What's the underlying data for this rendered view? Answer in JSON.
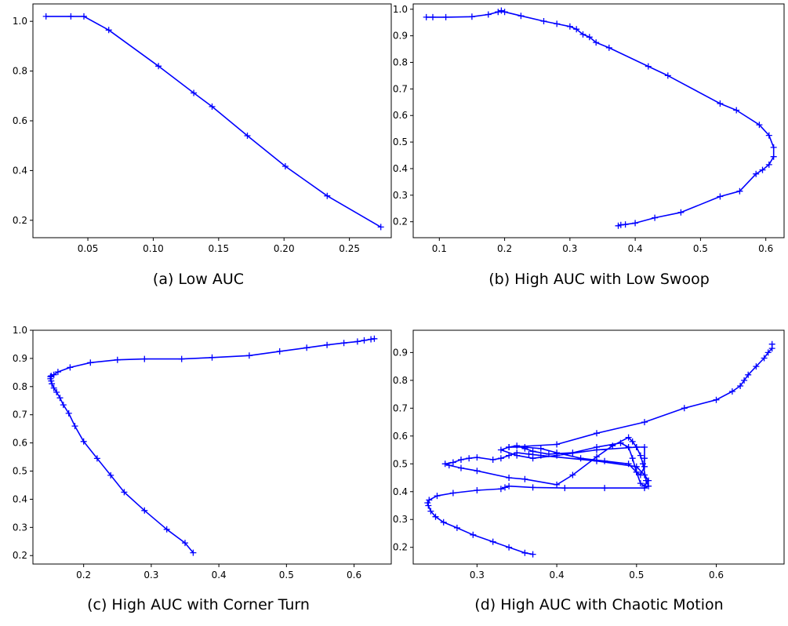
{
  "figure": {
    "line_color": "#0000ff",
    "marker": "plus"
  },
  "chart_data": [
    {
      "type": "line",
      "caption": "(a) Low AUC",
      "xlim": [
        0.008,
        0.282
      ],
      "ylim": [
        0.13,
        1.07
      ],
      "xticks": [
        0.05,
        0.1,
        0.15,
        0.2,
        0.25
      ],
      "xtick_labels": [
        "0.05",
        "0.10",
        "0.15",
        "0.20",
        "0.25"
      ],
      "yticks": [
        0.2,
        0.4,
        0.6,
        0.8,
        1.0
      ],
      "ytick_labels": [
        "0.2",
        "0.4",
        "0.6",
        "0.8",
        "1.0"
      ],
      "series": [
        {
          "x": [
            0.018,
            0.037,
            0.047,
            0.066,
            0.104,
            0.131,
            0.145,
            0.172,
            0.201,
            0.233,
            0.274
          ],
          "y": [
            1.02,
            1.02,
            1.02,
            0.965,
            0.82,
            0.712,
            0.657,
            0.54,
            0.417,
            0.298,
            0.173
          ]
        }
      ]
    },
    {
      "type": "line",
      "caption": "(b) High AUC with Low Swoop",
      "xlim": [
        0.06,
        0.628
      ],
      "ylim": [
        0.14,
        1.02
      ],
      "xticks": [
        0.1,
        0.2,
        0.3,
        0.4,
        0.5,
        0.6
      ],
      "xtick_labels": [
        "0.1",
        "0.2",
        "0.3",
        "0.4",
        "0.5",
        "0.6"
      ],
      "yticks": [
        0.2,
        0.3,
        0.4,
        0.5,
        0.6,
        0.7,
        0.8,
        0.9,
        1.0
      ],
      "ytick_labels": [
        "0.2",
        "0.3",
        "0.4",
        "0.5",
        "0.6",
        "0.7",
        "0.8",
        "0.9",
        "1.0"
      ],
      "series": [
        {
          "x": [
            0.08,
            0.09,
            0.11,
            0.15,
            0.175,
            0.19,
            0.195,
            0.2,
            0.225,
            0.26,
            0.28,
            0.3,
            0.31,
            0.32,
            0.33,
            0.34,
            0.36,
            0.42,
            0.45,
            0.53,
            0.555,
            0.59,
            0.605,
            0.612,
            0.612,
            0.605,
            0.595,
            0.585,
            0.56,
            0.53,
            0.47,
            0.43,
            0.4,
            0.385,
            0.378,
            0.374
          ],
          "y": [
            0.97,
            0.97,
            0.97,
            0.972,
            0.98,
            0.99,
            0.995,
            0.99,
            0.975,
            0.955,
            0.945,
            0.935,
            0.925,
            0.905,
            0.895,
            0.875,
            0.855,
            0.785,
            0.75,
            0.645,
            0.62,
            0.565,
            0.525,
            0.48,
            0.445,
            0.415,
            0.395,
            0.38,
            0.315,
            0.295,
            0.235,
            0.215,
            0.195,
            0.19,
            0.188,
            0.185
          ]
        }
      ]
    },
    {
      "type": "line",
      "caption": "(c) High AUC with Corner Turn",
      "xlim": [
        0.125,
        0.655
      ],
      "ylim": [
        0.17,
        1.0
      ],
      "xticks": [
        0.2,
        0.3,
        0.4,
        0.5,
        0.6
      ],
      "xtick_labels": [
        "0.2",
        "0.3",
        "0.4",
        "0.5",
        "0.6"
      ],
      "yticks": [
        0.2,
        0.3,
        0.4,
        0.5,
        0.6,
        0.7,
        0.8,
        0.9,
        1.0
      ],
      "ytick_labels": [
        "0.2",
        "0.3",
        "0.4",
        "0.5",
        "0.6",
        "0.7",
        "0.8",
        "0.9",
        "1.0"
      ],
      "series": [
        {
          "x": [
            0.362,
            0.35,
            0.323,
            0.29,
            0.26,
            0.24,
            0.22,
            0.2,
            0.187,
            0.178,
            0.17,
            0.165,
            0.16,
            0.156,
            0.153,
            0.152,
            0.151,
            0.151,
            0.152,
            0.156,
            0.162,
            0.18,
            0.21,
            0.25,
            0.29,
            0.345,
            0.39,
            0.445,
            0.49,
            0.53,
            0.56,
            0.585,
            0.605,
            0.615,
            0.625,
            0.63
          ],
          "y": [
            0.21,
            0.245,
            0.293,
            0.36,
            0.425,
            0.485,
            0.545,
            0.605,
            0.66,
            0.705,
            0.735,
            0.76,
            0.78,
            0.795,
            0.81,
            0.82,
            0.828,
            0.835,
            0.838,
            0.842,
            0.852,
            0.868,
            0.885,
            0.895,
            0.898,
            0.898,
            0.903,
            0.91,
            0.925,
            0.938,
            0.948,
            0.955,
            0.96,
            0.964,
            0.968,
            0.97
          ]
        }
      ]
    },
    {
      "type": "line",
      "caption": "(d) High AUC with Chaotic Motion",
      "xlim": [
        0.22,
        0.685
      ],
      "ylim": [
        0.14,
        0.98
      ],
      "xticks": [
        0.3,
        0.4,
        0.5,
        0.6
      ],
      "xtick_labels": [
        "0.3",
        "0.4",
        "0.5",
        "0.6"
      ],
      "yticks": [
        0.2,
        0.3,
        0.4,
        0.5,
        0.6,
        0.7,
        0.8,
        0.9
      ],
      "ytick_labels": [
        "0.2",
        "0.3",
        "0.4",
        "0.5",
        "0.6",
        "0.7",
        "0.8",
        "0.9"
      ],
      "series": [
        {
          "x": [
            0.37,
            0.36,
            0.34,
            0.32,
            0.295,
            0.275,
            0.258,
            0.248,
            0.242,
            0.239,
            0.238,
            0.24,
            0.25,
            0.27,
            0.3,
            0.33,
            0.335,
            0.34,
            0.37,
            0.41,
            0.46,
            0.51,
            0.515,
            0.512,
            0.508,
            0.505,
            0.5,
            0.495,
            0.49,
            0.47,
            0.45,
            0.42,
            0.4,
            0.36,
            0.34,
            0.3,
            0.28,
            0.265,
            0.26,
            0.27,
            0.28,
            0.29,
            0.3,
            0.32,
            0.33,
            0.34,
            0.35,
            0.365,
            0.38,
            0.45,
            0.5,
            0.51,
            0.515,
            0.51,
            0.505,
            0.5,
            0.495,
            0.49,
            0.48,
            0.45,
            0.42,
            0.39,
            0.37,
            0.36,
            0.35,
            0.34,
            0.33,
            0.35,
            0.37,
            0.4,
            0.45,
            0.5,
            0.51,
            0.51,
            0.51,
            0.505,
            0.5,
            0.49,
            0.46,
            0.43,
            0.4,
            0.38,
            0.36,
            0.34,
            0.4,
            0.45,
            0.51,
            0.56,
            0.6,
            0.62,
            0.63,
            0.635,
            0.64,
            0.65,
            0.66,
            0.665,
            0.67,
            0.67
          ],
          "y": [
            0.175,
            0.18,
            0.2,
            0.22,
            0.245,
            0.27,
            0.29,
            0.31,
            0.33,
            0.35,
            0.36,
            0.37,
            0.385,
            0.395,
            0.405,
            0.41,
            0.415,
            0.42,
            0.415,
            0.413,
            0.413,
            0.413,
            0.42,
            0.44,
            0.5,
            0.53,
            0.56,
            0.58,
            0.595,
            0.565,
            0.525,
            0.46,
            0.425,
            0.445,
            0.45,
            0.475,
            0.485,
            0.495,
            0.5,
            0.505,
            0.515,
            0.52,
            0.523,
            0.515,
            0.52,
            0.53,
            0.54,
            0.535,
            0.53,
            0.51,
            0.49,
            0.46,
            0.44,
            0.42,
            0.43,
            0.47,
            0.52,
            0.56,
            0.575,
            0.56,
            0.54,
            0.535,
            0.545,
            0.555,
            0.565,
            0.56,
            0.55,
            0.53,
            0.52,
            0.53,
            0.55,
            0.56,
            0.56,
            0.52,
            0.49,
            0.46,
            0.47,
            0.5,
            0.51,
            0.52,
            0.54,
            0.555,
            0.56,
            0.56,
            0.57,
            0.61,
            0.65,
            0.7,
            0.73,
            0.76,
            0.78,
            0.8,
            0.82,
            0.85,
            0.88,
            0.9,
            0.915,
            0.93
          ]
        }
      ]
    }
  ]
}
